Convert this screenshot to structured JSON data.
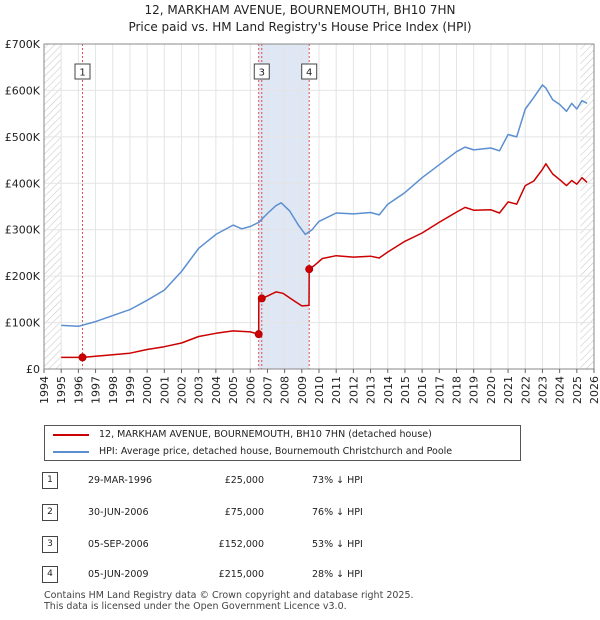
{
  "title": {
    "line1": "12, MARKHAM AVENUE, BOURNEMOUTH, BH10 7HN",
    "line2": "Price paid vs. HM Land Registry's House Price Index (HPI)"
  },
  "chart_data": {
    "type": "line",
    "title": "Price paid vs. HM Land Registry's House Price Index (HPI)",
    "xlabel": "",
    "ylabel": "",
    "xlim": [
      1994,
      2026
    ],
    "ylim": [
      0,
      700000
    ],
    "x_ticks": [
      1994,
      1995,
      1996,
      1997,
      1998,
      1999,
      2000,
      2001,
      2002,
      2003,
      2004,
      2005,
      2006,
      2007,
      2008,
      2009,
      2010,
      2011,
      2012,
      2013,
      2014,
      2015,
      2016,
      2017,
      2018,
      2019,
      2020,
      2021,
      2022,
      2023,
      2024,
      2025,
      2026
    ],
    "y_ticks": [
      {
        "value": 0,
        "label": "£0"
      },
      {
        "value": 100000,
        "label": "£100K"
      },
      {
        "value": 200000,
        "label": "£200K"
      },
      {
        "value": 300000,
        "label": "£300K"
      },
      {
        "value": 400000,
        "label": "£400K"
      },
      {
        "value": 500000,
        "label": "£500K"
      },
      {
        "value": 600000,
        "label": "£600K"
      },
      {
        "value": 700000,
        "label": "£700K"
      }
    ],
    "grid": true,
    "hatched_regions": [
      [
        1994,
        1995
      ],
      [
        2025.2,
        2026
      ]
    ],
    "series": [
      {
        "name": "12, MARKHAM AVENUE, BOURNEMOUTH, BH10 7HN (detached house)",
        "color": "#cc0000",
        "points": [
          [
            1995.0,
            25000
          ],
          [
            1996.24,
            25000
          ],
          [
            1997.0,
            27500
          ],
          [
            1998.0,
            30500
          ],
          [
            1999.0,
            34000
          ],
          [
            2000.0,
            42000
          ],
          [
            2001.0,
            48000
          ],
          [
            2002.0,
            56000
          ],
          [
            2003.0,
            70000
          ],
          [
            2004.0,
            77000
          ],
          [
            2005.0,
            82000
          ],
          [
            2006.0,
            80000
          ],
          [
            2006.49,
            75000
          ],
          [
            2006.5,
            147000
          ],
          [
            2006.67,
            152000
          ],
          [
            2007.0,
            157000
          ],
          [
            2007.5,
            166000
          ],
          [
            2007.9,
            163000
          ],
          [
            2008.5,
            148000
          ],
          [
            2009.0,
            136000
          ],
          [
            2009.42,
            137000
          ],
          [
            2009.43,
            215000
          ],
          [
            2009.7,
            222000
          ],
          [
            2010.2,
            238000
          ],
          [
            2011.0,
            244000
          ],
          [
            2012.0,
            241000
          ],
          [
            2013.0,
            243000
          ],
          [
            2013.5,
            239000
          ],
          [
            2014.0,
            252000
          ],
          [
            2015.0,
            275000
          ],
          [
            2016.0,
            293000
          ],
          [
            2017.0,
            316000
          ],
          [
            2018.0,
            338000
          ],
          [
            2018.5,
            348000
          ],
          [
            2019.0,
            342000
          ],
          [
            2020.0,
            343000
          ],
          [
            2020.5,
            336000
          ],
          [
            2021.0,
            360000
          ],
          [
            2021.5,
            355000
          ],
          [
            2022.0,
            395000
          ],
          [
            2022.5,
            405000
          ],
          [
            2023.0,
            430000
          ],
          [
            2023.2,
            442000
          ],
          [
            2023.6,
            420000
          ],
          [
            2024.0,
            408000
          ],
          [
            2024.4,
            395000
          ],
          [
            2024.7,
            406000
          ],
          [
            2025.0,
            398000
          ],
          [
            2025.3,
            412000
          ],
          [
            2025.6,
            402000
          ]
        ]
      },
      {
        "name": "HPI: Average price, detached house, Bournemouth Christchurch and Poole",
        "color": "#5b8fd0",
        "points": [
          [
            1995.0,
            94000
          ],
          [
            1996.0,
            92000
          ],
          [
            1997.0,
            102000
          ],
          [
            1998.0,
            115000
          ],
          [
            1999.0,
            128000
          ],
          [
            2000.0,
            148000
          ],
          [
            2001.0,
            170000
          ],
          [
            2002.0,
            210000
          ],
          [
            2003.0,
            260000
          ],
          [
            2004.0,
            290000
          ],
          [
            2005.0,
            310000
          ],
          [
            2005.5,
            302000
          ],
          [
            2006.0,
            307000
          ],
          [
            2006.5,
            316000
          ],
          [
            2007.0,
            335000
          ],
          [
            2007.5,
            352000
          ],
          [
            2007.8,
            358000
          ],
          [
            2008.3,
            340000
          ],
          [
            2008.8,
            310000
          ],
          [
            2009.2,
            290000
          ],
          [
            2009.6,
            300000
          ],
          [
            2010.0,
            318000
          ],
          [
            2011.0,
            336000
          ],
          [
            2012.0,
            334000
          ],
          [
            2013.0,
            337000
          ],
          [
            2013.5,
            332000
          ],
          [
            2014.0,
            355000
          ],
          [
            2015.0,
            380000
          ],
          [
            2016.0,
            412000
          ],
          [
            2017.0,
            440000
          ],
          [
            2018.0,
            468000
          ],
          [
            2018.5,
            478000
          ],
          [
            2019.0,
            472000
          ],
          [
            2020.0,
            476000
          ],
          [
            2020.5,
            470000
          ],
          [
            2021.0,
            505000
          ],
          [
            2021.5,
            500000
          ],
          [
            2022.0,
            560000
          ],
          [
            2022.5,
            585000
          ],
          [
            2023.0,
            612000
          ],
          [
            2023.2,
            605000
          ],
          [
            2023.6,
            580000
          ],
          [
            2024.0,
            570000
          ],
          [
            2024.4,
            555000
          ],
          [
            2024.7,
            572000
          ],
          [
            2025.0,
            560000
          ],
          [
            2025.3,
            578000
          ],
          [
            2025.6,
            572000
          ]
        ]
      }
    ],
    "sales": [
      {
        "marker": "1",
        "x": 1996.24,
        "price": 25000
      },
      {
        "marker": "2",
        "x": 2006.49,
        "price": 75000
      },
      {
        "marker": "3",
        "x": 2006.67,
        "price": 152000
      },
      {
        "marker": "4",
        "x": 2009.43,
        "price": 215000
      }
    ],
    "vlines": [
      1996.24,
      2006.49,
      2006.67,
      2009.43
    ],
    "shaded_spans": [
      [
        2006.49,
        2009.43
      ]
    ],
    "callouts": [
      {
        "label": "1",
        "x": 1996.24
      },
      {
        "label": "3",
        "x": 2006.67
      },
      {
        "label": "4",
        "x": 2009.43
      }
    ],
    "legend": [
      "12, MARKHAM AVENUE, BOURNEMOUTH, BH10 7HN (detached house)",
      "HPI: Average price, detached house, Bournemouth Christchurch and Poole"
    ]
  },
  "table": [
    {
      "num": "1",
      "date": "29-MAR-1996",
      "price": "£25,000",
      "hpi": "73% ↓ HPI"
    },
    {
      "num": "2",
      "date": "30-JUN-2006",
      "price": "£75,000",
      "hpi": "76% ↓ HPI"
    },
    {
      "num": "3",
      "date": "05-SEP-2006",
      "price": "£152,000",
      "hpi": "53% ↓ HPI"
    },
    {
      "num": "4",
      "date": "05-JUN-2009",
      "price": "£215,000",
      "hpi": "28% ↓ HPI"
    }
  ],
  "footer": {
    "line1": "Contains HM Land Registry data © Crown copyright and database right 2025.",
    "line2": "This data is licensed under the Open Government Licence v3.0."
  }
}
